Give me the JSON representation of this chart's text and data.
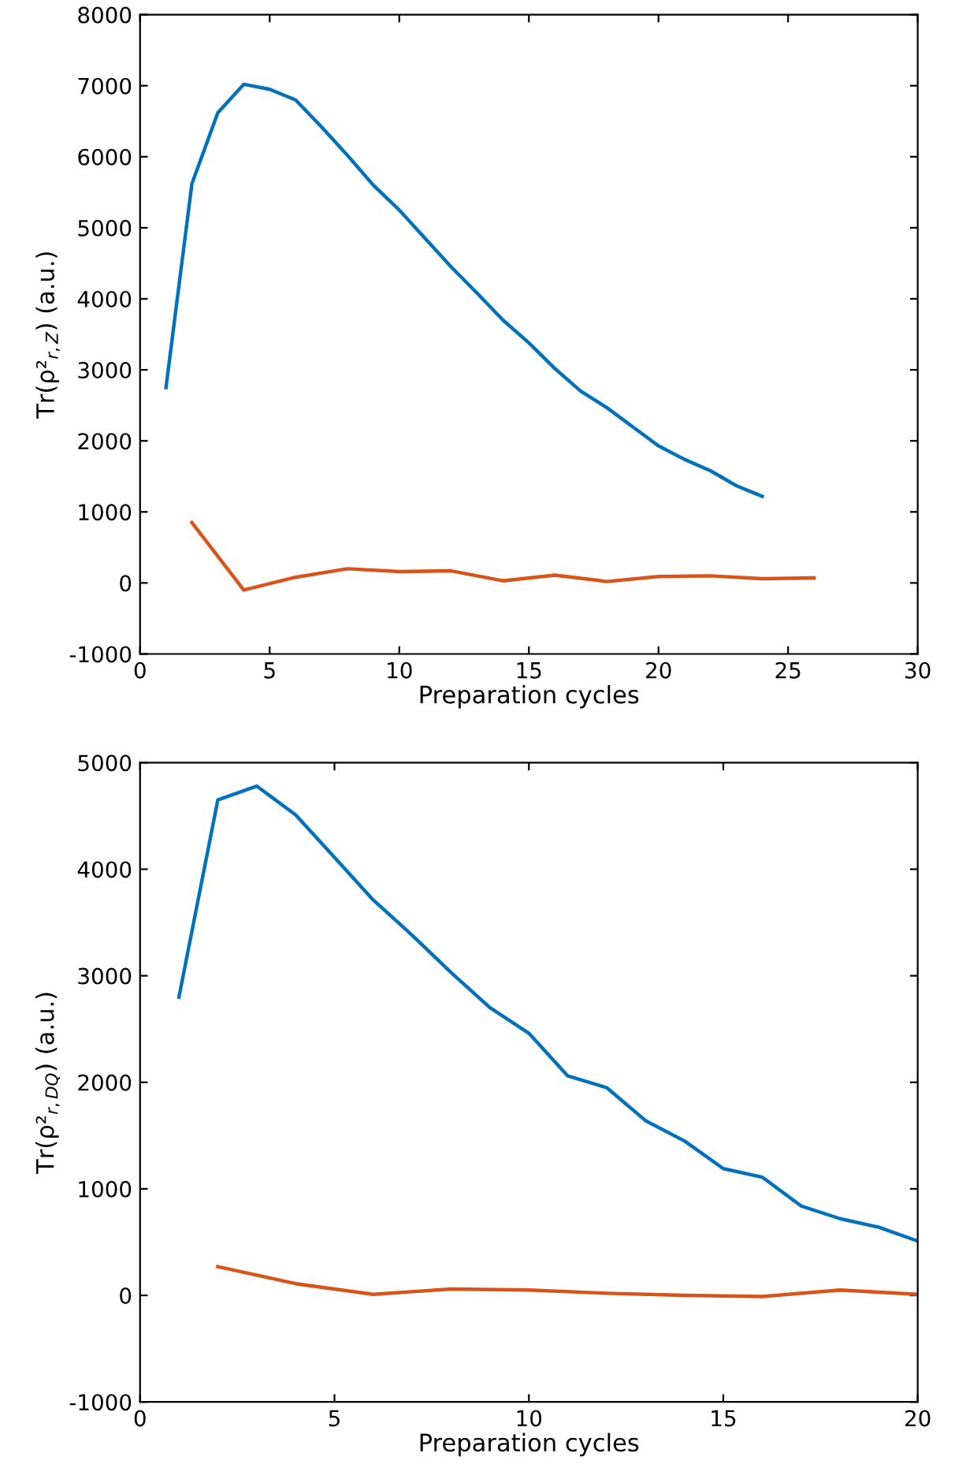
{
  "chart_data": [
    {
      "type": "line",
      "xlabel": "Preparation cycles",
      "ylabel": "Tr(ρ²$_{r,Z}$) (a.u.)",
      "xlim": [
        0,
        30
      ],
      "xticks": [
        0,
        5,
        10,
        15,
        20,
        25,
        30
      ],
      "ylim": [
        -1000,
        8000
      ],
      "yticks": [
        -1000,
        0,
        1000,
        2000,
        3000,
        4000,
        5000,
        6000,
        7000,
        8000
      ],
      "grid": false,
      "legend": false,
      "marker": "none",
      "line_style": "solid",
      "series": [
        {
          "color": "#0072bd",
          "x": [
            1,
            2,
            3,
            4,
            5,
            6,
            7,
            8,
            9,
            10,
            11,
            12,
            13,
            14,
            15,
            16,
            17,
            18,
            19,
            20,
            21,
            22,
            23,
            24
          ],
          "values": [
            2750,
            5620,
            6620,
            7020,
            6950,
            6800,
            6420,
            6020,
            5600,
            5250,
            4850,
            4450,
            4080,
            3700,
            3380,
            3020,
            2700,
            2470,
            2200,
            1930,
            1740,
            1580,
            1370,
            1220
          ]
        },
        {
          "color": "#d95319",
          "x": [
            2,
            4,
            6,
            8,
            10,
            12,
            14,
            16,
            18,
            20,
            22,
            24,
            26
          ],
          "values": [
            850,
            -100,
            80,
            200,
            160,
            170,
            30,
            110,
            20,
            90,
            100,
            60,
            70
          ]
        }
      ]
    },
    {
      "type": "line",
      "xlabel": "Preparation cycles",
      "ylabel": "Tr(ρ²$_{r,DQ}$) (a.u.)",
      "xlim": [
        0,
        20
      ],
      "xticks": [
        0,
        5,
        10,
        15,
        20
      ],
      "ylim": [
        -1000,
        5000
      ],
      "yticks": [
        -1000,
        0,
        1000,
        2000,
        3000,
        4000,
        5000
      ],
      "grid": false,
      "legend": false,
      "marker": "none",
      "line_style": "solid",
      "series": [
        {
          "color": "#0072bd",
          "x": [
            1,
            2,
            3,
            4,
            5,
            6,
            7,
            8,
            9,
            10,
            11,
            12,
            13,
            14,
            15,
            16,
            17,
            18,
            19,
            20
          ],
          "values": [
            2800,
            4650,
            4780,
            4510,
            4110,
            3710,
            3380,
            3030,
            2700,
            2460,
            2060,
            1950,
            1640,
            1450,
            1190,
            1110,
            840,
            720,
            640,
            510
          ]
        },
        {
          "color": "#d95319",
          "x": [
            2,
            4,
            6,
            8,
            10,
            12,
            14,
            16,
            18,
            20
          ],
          "values": [
            270,
            110,
            10,
            60,
            50,
            20,
            0,
            -10,
            50,
            10
          ]
        }
      ]
    }
  ]
}
